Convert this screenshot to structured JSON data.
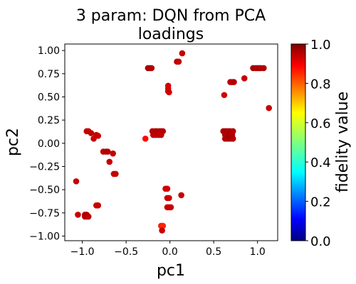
{
  "chart_data": {
    "type": "scatter",
    "title_line1": "3 param:  DQN from PCA",
    "title_line2": "loadings",
    "xlabel": "pc1",
    "ylabel": "pc2",
    "xlim": [
      -1.2,
      1.23
    ],
    "ylim": [
      -1.05,
      1.07
    ],
    "x_ticks": [
      -1.0,
      -0.5,
      0.0,
      0.5,
      1.0
    ],
    "x_tick_labels": [
      "−1.0",
      "−0.5",
      "0.0",
      "0.5",
      "1.0"
    ],
    "y_ticks": [
      1.0,
      0.75,
      0.5,
      0.25,
      0.0,
      -0.25,
      -0.5,
      -0.75,
      -1.0
    ],
    "y_tick_labels": [
      "1.00",
      "0.75",
      "0.50",
      "0.25",
      "0.00",
      "−0.25",
      "−0.50",
      "−0.75",
      "−1.00"
    ],
    "grid": false,
    "colorbar": {
      "label": "fidelity value",
      "range": [
        0.0,
        1.0
      ],
      "colormap": "jet",
      "ticks": [
        0.0,
        0.2,
        0.4,
        0.6,
        0.8,
        1.0
      ],
      "tick_labels": [
        "0.0",
        "0.2",
        "0.4",
        "0.6",
        "0.8",
        "1.0"
      ]
    },
    "points": [
      {
        "x": 0.14,
        "y": 0.97,
        "c": 0.93
      },
      {
        "x": 0.08,
        "y": 0.88,
        "c": 0.95
      },
      {
        "x": 0.1,
        "y": 0.88,
        "c": 0.93
      },
      {
        "x": -0.25,
        "y": 0.81,
        "c": 0.96
      },
      {
        "x": -0.23,
        "y": 0.81,
        "c": 0.96
      },
      {
        "x": -0.21,
        "y": 0.81,
        "c": 0.95
      },
      {
        "x": -0.02,
        "y": 0.62,
        "c": 0.92
      },
      {
        "x": -0.02,
        "y": 0.59,
        "c": 0.92
      },
      {
        "x": -0.02,
        "y": 0.56,
        "c": 0.93
      },
      {
        "x": -0.01,
        "y": 0.55,
        "c": 0.92
      },
      {
        "x": 0.95,
        "y": 0.81,
        "c": 0.96
      },
      {
        "x": 0.98,
        "y": 0.81,
        "c": 0.96
      },
      {
        "x": 1.0,
        "y": 0.81,
        "c": 0.95
      },
      {
        "x": 1.02,
        "y": 0.81,
        "c": 0.96
      },
      {
        "x": 1.04,
        "y": 0.81,
        "c": 0.95
      },
      {
        "x": 1.07,
        "y": 0.81,
        "c": 0.95
      },
      {
        "x": 0.85,
        "y": 0.7,
        "c": 0.93
      },
      {
        "x": 0.69,
        "y": 0.66,
        "c": 0.95
      },
      {
        "x": 0.71,
        "y": 0.66,
        "c": 0.94
      },
      {
        "x": 0.73,
        "y": 0.66,
        "c": 0.95
      },
      {
        "x": 0.62,
        "y": 0.52,
        "c": 0.92
      },
      {
        "x": 1.13,
        "y": 0.38,
        "c": 0.93
      },
      {
        "x": 0.61,
        "y": 0.13,
        "c": 0.96
      },
      {
        "x": 0.63,
        "y": 0.13,
        "c": 0.96
      },
      {
        "x": 0.65,
        "y": 0.13,
        "c": 0.96
      },
      {
        "x": 0.67,
        "y": 0.13,
        "c": 0.95
      },
      {
        "x": 0.69,
        "y": 0.13,
        "c": 0.96
      },
      {
        "x": 0.72,
        "y": 0.13,
        "c": 0.95
      },
      {
        "x": 0.63,
        "y": 0.09,
        "c": 0.95
      },
      {
        "x": 0.67,
        "y": 0.09,
        "c": 0.96
      },
      {
        "x": 0.71,
        "y": 0.09,
        "c": 0.95
      },
      {
        "x": 0.63,
        "y": 0.05,
        "c": 0.95
      },
      {
        "x": 0.66,
        "y": 0.05,
        "c": 0.96
      },
      {
        "x": 0.69,
        "y": 0.05,
        "c": 0.96
      },
      {
        "x": 0.72,
        "y": 0.05,
        "c": 0.95
      },
      {
        "x": -0.95,
        "y": 0.13,
        "c": 0.93
      },
      {
        "x": -0.93,
        "y": 0.13,
        "c": 0.93
      },
      {
        "x": -0.9,
        "y": 0.11,
        "c": 0.94
      },
      {
        "x": -0.84,
        "y": 0.09,
        "c": 0.93
      },
      {
        "x": -0.82,
        "y": 0.08,
        "c": 0.93
      },
      {
        "x": -0.87,
        "y": 0.05,
        "c": 0.93
      },
      {
        "x": -0.2,
        "y": 0.13,
        "c": 0.95
      },
      {
        "x": -0.17,
        "y": 0.13,
        "c": 0.95
      },
      {
        "x": -0.15,
        "y": 0.13,
        "c": 0.95
      },
      {
        "x": -0.12,
        "y": 0.13,
        "c": 0.96
      },
      {
        "x": -0.1,
        "y": 0.13,
        "c": 0.95
      },
      {
        "x": -0.08,
        "y": 0.13,
        "c": 0.95
      },
      {
        "x": -0.19,
        "y": 0.09,
        "c": 0.94
      },
      {
        "x": -0.16,
        "y": 0.09,
        "c": 0.94
      },
      {
        "x": -0.13,
        "y": 0.09,
        "c": 0.94
      },
      {
        "x": -0.1,
        "y": 0.09,
        "c": 0.94
      },
      {
        "x": -0.28,
        "y": 0.05,
        "c": 0.87
      },
      {
        "x": -0.76,
        "y": -0.09,
        "c": 0.94
      },
      {
        "x": -0.73,
        "y": -0.09,
        "c": 0.94
      },
      {
        "x": -0.71,
        "y": -0.09,
        "c": 0.95
      },
      {
        "x": -0.65,
        "y": -0.11,
        "c": 0.93
      },
      {
        "x": -0.69,
        "y": -0.2,
        "c": 0.93
      },
      {
        "x": -0.64,
        "y": -0.33,
        "c": 0.93
      },
      {
        "x": -0.62,
        "y": -0.33,
        "c": 0.93
      },
      {
        "x": -1.07,
        "y": -0.41,
        "c": 0.93
      },
      {
        "x": -0.05,
        "y": -0.49,
        "c": 0.92
      },
      {
        "x": -0.03,
        "y": -0.49,
        "c": 0.92
      },
      {
        "x": 0.13,
        "y": -0.56,
        "c": 0.93
      },
      {
        "x": -0.03,
        "y": -0.59,
        "c": 0.93
      },
      {
        "x": -0.01,
        "y": -0.59,
        "c": 0.93
      },
      {
        "x": -0.03,
        "y": -0.69,
        "c": 0.93
      },
      {
        "x": -0.01,
        "y": -0.69,
        "c": 0.93
      },
      {
        "x": 0.01,
        "y": -0.69,
        "c": 0.93
      },
      {
        "x": -0.84,
        "y": -0.67,
        "c": 0.93
      },
      {
        "x": -0.82,
        "y": -0.67,
        "c": 0.93
      },
      {
        "x": -1.05,
        "y": -0.77,
        "c": 0.93
      },
      {
        "x": -0.97,
        "y": -0.77,
        "c": 0.95
      },
      {
        "x": -0.95,
        "y": -0.77,
        "c": 0.95
      },
      {
        "x": -0.97,
        "y": -0.79,
        "c": 0.95
      },
      {
        "x": -0.95,
        "y": -0.79,
        "c": 0.95
      },
      {
        "x": -0.93,
        "y": -0.79,
        "c": 0.94
      },
      {
        "x": -0.1,
        "y": -0.89,
        "c": 0.85
      },
      {
        "x": -0.08,
        "y": -0.89,
        "c": 0.84
      },
      {
        "x": -0.09,
        "y": -0.94,
        "c": 0.93
      }
    ]
  }
}
